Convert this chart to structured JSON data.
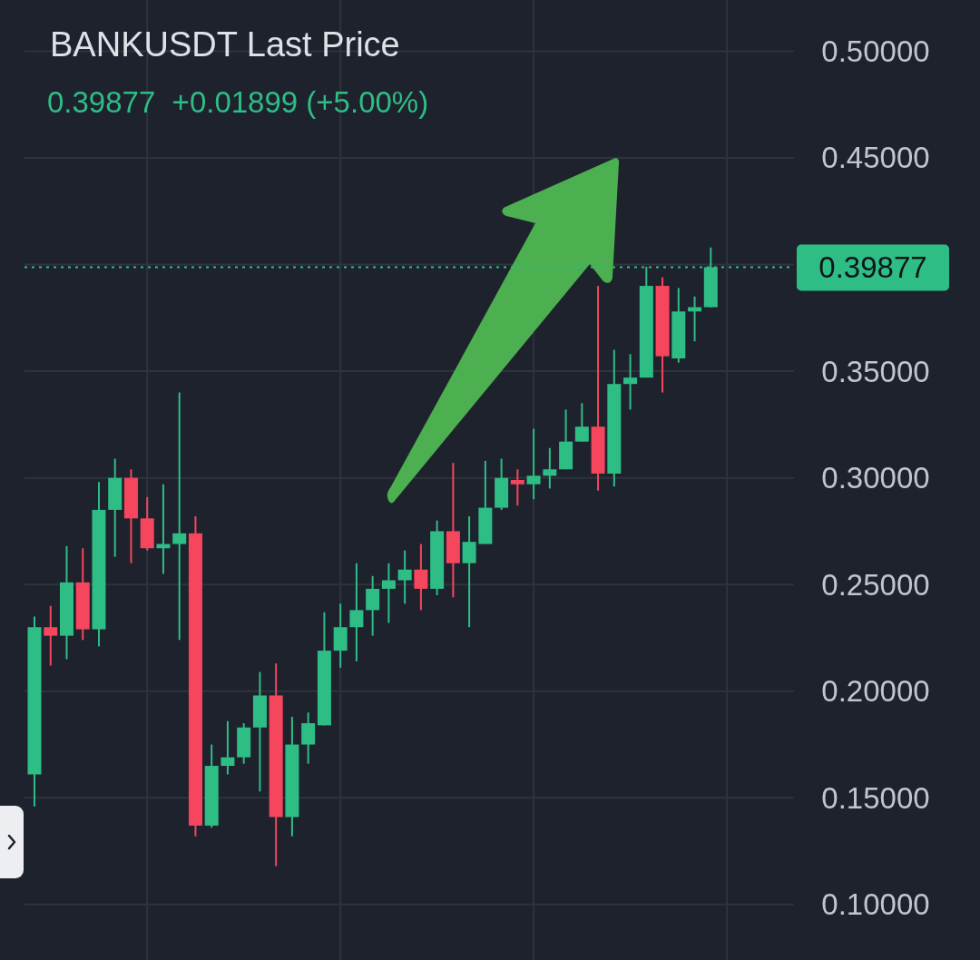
{
  "chart_data": {
    "type": "candlestick",
    "title": "BANKUSDT Last Price",
    "subtitle": "0.39877  +0.01899 (+5.00%)",
    "categories": [
      null,
      null,
      null,
      null,
      null,
      null,
      null,
      null,
      null,
      null,
      null,
      null,
      null,
      null,
      null,
      null,
      null,
      null,
      null,
      null,
      null,
      null,
      null,
      null,
      null,
      null,
      null,
      null,
      null,
      null,
      null,
      null,
      null,
      null,
      null,
      null,
      null,
      null,
      null,
      null,
      null,
      null,
      null
    ],
    "ohlc": [
      [
        0.161,
        0.235,
        0.146,
        0.23
      ],
      [
        0.23,
        0.24,
        0.212,
        0.226
      ],
      [
        0.226,
        0.268,
        0.215,
        0.251
      ],
      [
        0.251,
        0.267,
        0.224,
        0.229
      ],
      [
        0.229,
        0.298,
        0.221,
        0.285
      ],
      [
        0.285,
        0.309,
        0.263,
        0.3
      ],
      [
        0.3,
        0.304,
        0.26,
        0.281
      ],
      [
        0.281,
        0.291,
        0.266,
        0.267
      ],
      [
        0.267,
        0.297,
        0.255,
        0.269
      ],
      [
        0.269,
        0.34,
        0.224,
        0.274
      ],
      [
        0.274,
        0.282,
        0.132,
        0.137
      ],
      [
        0.137,
        0.175,
        0.136,
        0.165
      ],
      [
        0.165,
        0.186,
        0.161,
        0.169
      ],
      [
        0.169,
        0.185,
        0.166,
        0.183
      ],
      [
        0.183,
        0.209,
        0.153,
        0.198
      ],
      [
        0.198,
        0.213,
        0.118,
        0.141
      ],
      [
        0.141,
        0.188,
        0.132,
        0.175
      ],
      [
        0.175,
        0.19,
        0.166,
        0.185
      ],
      [
        0.184,
        0.237,
        0.184,
        0.219
      ],
      [
        0.219,
        0.241,
        0.211,
        0.23
      ],
      [
        0.23,
        0.26,
        0.214,
        0.238
      ],
      [
        0.238,
        0.254,
        0.226,
        0.248
      ],
      [
        0.248,
        0.26,
        0.232,
        0.252
      ],
      [
        0.252,
        0.266,
        0.241,
        0.257
      ],
      [
        0.257,
        0.269,
        0.238,
        0.248
      ],
      [
        0.248,
        0.28,
        0.245,
        0.275
      ],
      [
        0.275,
        0.307,
        0.244,
        0.26
      ],
      [
        0.26,
        0.282,
        0.23,
        0.27
      ],
      [
        0.269,
        0.308,
        0.269,
        0.286
      ],
      [
        0.286,
        0.309,
        0.285,
        0.3
      ],
      [
        0.299,
        0.304,
        0.287,
        0.297
      ],
      [
        0.297,
        0.323,
        0.29,
        0.301
      ],
      [
        0.301,
        0.314,
        0.295,
        0.304
      ],
      [
        0.304,
        0.332,
        0.304,
        0.317
      ],
      [
        0.317,
        0.335,
        0.317,
        0.324
      ],
      [
        0.324,
        0.39,
        0.294,
        0.302
      ],
      [
        0.302,
        0.36,
        0.296,
        0.344
      ],
      [
        0.344,
        0.358,
        0.332,
        0.347
      ],
      [
        0.347,
        0.399,
        0.347,
        0.39
      ],
      [
        0.39,
        0.394,
        0.34,
        0.357
      ],
      [
        0.356,
        0.389,
        0.354,
        0.378
      ],
      [
        0.378,
        0.385,
        0.364,
        0.38
      ],
      [
        0.38,
        0.408,
        0.38,
        0.39877
      ]
    ],
    "colors": [
      "#2ebd85",
      "#f6465d",
      "#2ebd85",
      "#f6465d",
      "#2ebd85",
      "#2ebd85",
      "#f6465d",
      "#f6465d",
      "#2ebd85",
      "#2ebd85",
      "#f6465d",
      "#2ebd85",
      "#2ebd85",
      "#2ebd85",
      "#2ebd85",
      "#f6465d",
      "#2ebd85",
      "#2ebd85",
      "#2ebd85",
      "#2ebd85",
      "#2ebd85",
      "#2ebd85",
      "#2ebd85",
      "#2ebd85",
      "#f6465d",
      "#2ebd85",
      "#f6465d",
      "#2ebd85",
      "#2ebd85",
      "#2ebd85",
      "#f6465d",
      "#2ebd85",
      "#2ebd85",
      "#2ebd85",
      "#2ebd85",
      "#f6465d",
      "#2ebd85",
      "#2ebd85",
      "#2ebd85",
      "#f6465d",
      "#2ebd85",
      "#2ebd85",
      "#2ebd85"
    ],
    "ylim": [
      0.074,
      0.524
    ],
    "yticks": [
      {
        "value": 0.1,
        "label": "0.10000"
      },
      {
        "value": 0.15,
        "label": "0.15000"
      },
      {
        "value": 0.2,
        "label": "0.20000"
      },
      {
        "value": 0.25,
        "label": "0.25000"
      },
      {
        "value": 0.3,
        "label": "0.30000"
      },
      {
        "value": 0.35,
        "label": "0.35000"
      },
      {
        "value": 0.4,
        "label": null
      },
      {
        "value": 0.45,
        "label": "0.45000"
      },
      {
        "value": 0.5,
        "label": "0.50000"
      }
    ],
    "ref_lines": [
      {
        "axis": "y",
        "value": 0.39877,
        "label": "0.39877",
        "color": "#2ebd85",
        "line_style": "dotted"
      }
    ],
    "grid": true,
    "tick_labels": "y"
  }
}
